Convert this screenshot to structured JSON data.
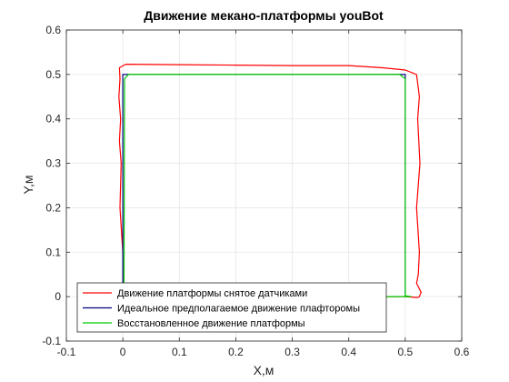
{
  "chart_data": {
    "type": "line",
    "title": "Движение мекано-платформы youBot",
    "xlabel": "X,м",
    "ylabel": "Y,м",
    "xlim": [
      -0.1,
      0.6
    ],
    "ylim": [
      -0.1,
      0.6
    ],
    "xticks": [
      "-0.1",
      "0",
      "0.1",
      "0.2",
      "0.3",
      "0.4",
      "0.5",
      "0.6"
    ],
    "yticks": [
      "-0.1",
      "0",
      "0.1",
      "0.2",
      "0.3",
      "0.4",
      "0.5",
      "0.6"
    ],
    "grid": true,
    "legend_position": "bottom-left",
    "series": [
      {
        "name": "Движение платформы снятое датчиками",
        "color": "#ff0000",
        "x": [
          0.0,
          0.0,
          -0.005,
          -0.003,
          -0.006,
          -0.004,
          -0.007,
          -0.005,
          -0.006,
          0.005,
          0.1,
          0.2,
          0.3,
          0.4,
          0.46,
          0.5,
          0.52,
          0.525,
          0.522,
          0.526,
          0.52,
          0.525,
          0.523,
          0.52,
          0.528,
          0.525,
          0.522,
          0.5,
          0.4,
          0.3
        ],
        "y": [
          0.0,
          0.1,
          0.2,
          0.3,
          0.35,
          0.4,
          0.45,
          0.49,
          0.515,
          0.523,
          0.522,
          0.521,
          0.52,
          0.52,
          0.515,
          0.51,
          0.5,
          0.45,
          0.4,
          0.3,
          0.2,
          0.1,
          0.05,
          0.03,
          0.01,
          0.0,
          -0.002,
          0.0,
          0.0,
          0.0
        ]
      },
      {
        "name": "Идеальное предполагаемое движение плафторомы",
        "color": "#000080",
        "x": [
          0.0,
          0.0,
          0.5,
          0.5
        ],
        "y": [
          0.0,
          0.5,
          0.5,
          0.0
        ]
      },
      {
        "name": "Восстановленное движение платформы",
        "color": "#00cc00",
        "x": [
          0.002,
          0.003,
          0.01,
          0.49,
          0.5,
          0.5,
          0.51,
          0.3
        ],
        "y": [
          0.0,
          0.49,
          0.5,
          0.5,
          0.49,
          0.002,
          0.0,
          0.0
        ]
      }
    ]
  }
}
